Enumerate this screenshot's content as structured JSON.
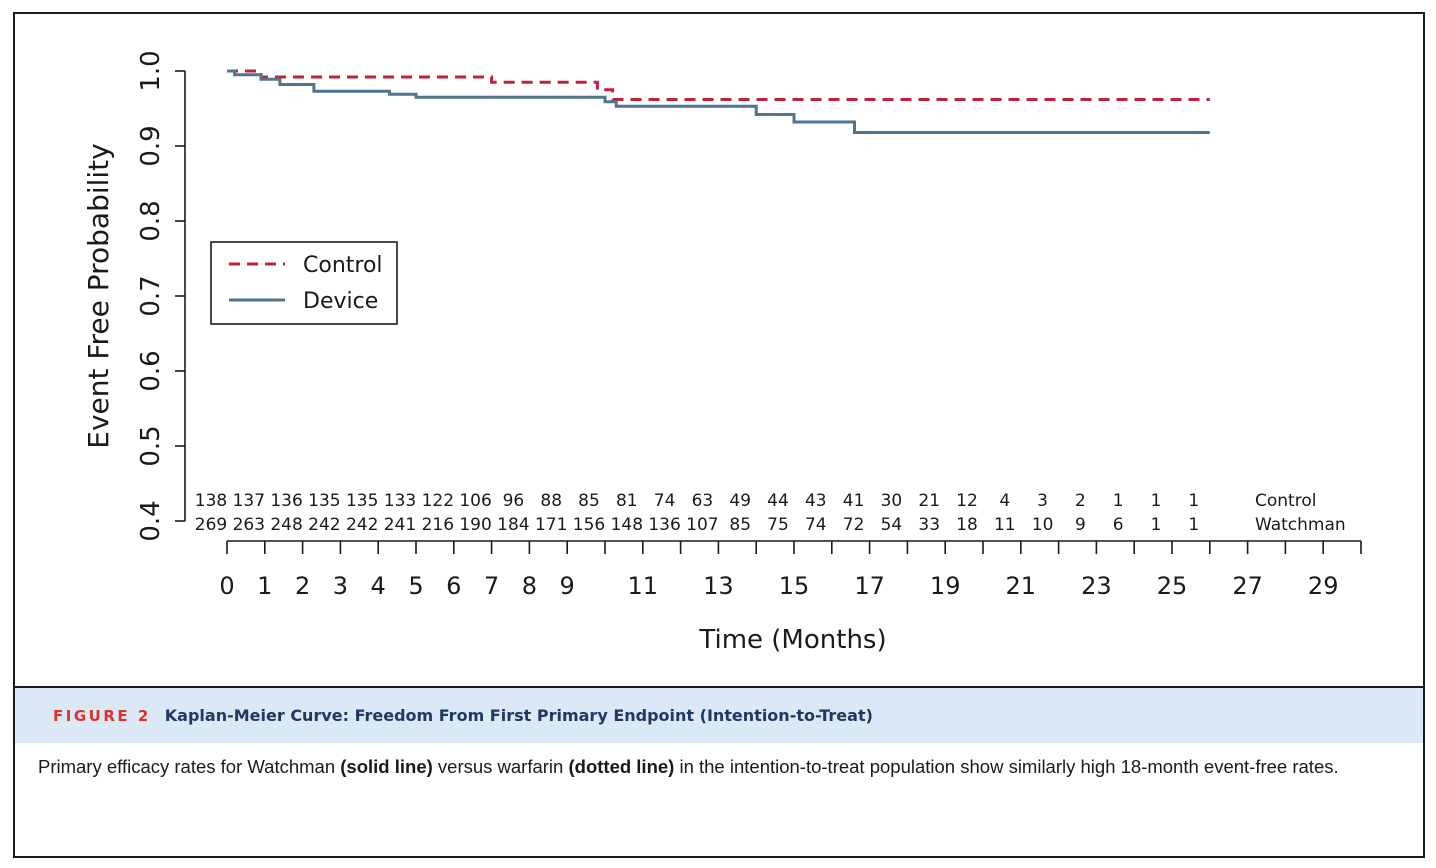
{
  "figure": {
    "number_label": "FIGURE 2",
    "title": "Kaplan-Meier Curve: Freedom From First Primary Endpoint (Intention-to-Treat)",
    "caption_part1": "Primary efficacy rates for Watchman ",
    "caption_bold1": "(solid line)",
    "caption_part2": " versus warfarin ",
    "caption_bold2": "(dotted line)",
    "caption_part3": " in the intention-to-treat population show similarly high 18-month event-free rates."
  },
  "chart_data": {
    "type": "line",
    "xlabel": "Time (Months)",
    "ylabel": "Event Free Probability",
    "xlim": [
      0,
      30
    ],
    "ylim": [
      0.4,
      1.0
    ],
    "x_ticks": [
      0,
      1,
      2,
      3,
      4,
      5,
      6,
      7,
      8,
      9,
      10,
      11,
      12,
      13,
      14,
      15,
      16,
      17,
      18,
      19,
      20,
      21,
      22,
      23,
      24,
      25,
      26,
      27,
      28,
      29,
      30
    ],
    "x_tick_labels": [
      "0",
      "1",
      "2",
      "3",
      "4",
      "5",
      "6",
      "7",
      "8",
      "9",
      "11",
      "13",
      "15",
      "17",
      "19",
      "21",
      "23",
      "25",
      "27",
      "29"
    ],
    "x_tick_label_values": [
      0,
      1,
      2,
      3,
      4,
      5,
      6,
      7,
      8,
      9,
      11,
      13,
      15,
      17,
      19,
      21,
      23,
      25,
      27,
      29
    ],
    "y_ticks": [
      0.4,
      0.5,
      0.6,
      0.7,
      0.8,
      0.9,
      1.0
    ],
    "y_tick_labels": [
      "0.4",
      "0.5",
      "0.6",
      "0.7",
      "0.8",
      "0.9",
      "1.0"
    ],
    "legend_position": "left",
    "grid": false,
    "series": [
      {
        "name": "Control",
        "color": "#c0223b",
        "style": "dashed",
        "x": [
          0,
          0.9,
          0.9,
          7,
          7,
          9.8,
          9.8,
          10.2,
          10.2,
          26
        ],
        "y": [
          1.0,
          1.0,
          0.992,
          0.992,
          0.985,
          0.985,
          0.975,
          0.975,
          0.962,
          0.962
        ]
      },
      {
        "name": "Device",
        "color": "#4f7590",
        "style": "solid",
        "x": [
          0,
          0.2,
          0.2,
          0.9,
          0.9,
          1.4,
          1.4,
          2.3,
          2.3,
          4.3,
          4.3,
          5.0,
          5.0,
          10.0,
          10.0,
          10.3,
          10.3,
          14.0,
          14.0,
          15.0,
          15.0,
          16.6,
          16.6,
          26
        ],
        "y": [
          1.0,
          1.0,
          0.995,
          0.995,
          0.989,
          0.989,
          0.982,
          0.982,
          0.973,
          0.973,
          0.969,
          0.969,
          0.965,
          0.965,
          0.959,
          0.959,
          0.953,
          0.953,
          0.942,
          0.942,
          0.932,
          0.932,
          0.918,
          0.918
        ]
      }
    ],
    "at_risk": {
      "times": [
        0,
        1,
        2,
        3,
        4,
        5,
        6,
        7,
        8,
        9,
        10,
        11,
        12,
        13,
        14,
        15,
        16,
        17,
        18,
        19,
        20,
        21,
        22,
        23,
        24,
        25,
        26
      ],
      "rows": [
        {
          "label": "Control",
          "values": [
            "138",
            "137",
            "136",
            "135",
            "135",
            "133",
            "122",
            "106",
            "96",
            "88",
            "85",
            "81",
            "74",
            "63",
            "49",
            "44",
            "43",
            "41",
            "30",
            "21",
            "12",
            "4",
            "3",
            "2",
            "1",
            "1",
            "1"
          ]
        },
        {
          "label": "Watchman",
          "values": [
            "269",
            "263",
            "248",
            "242",
            "242",
            "241",
            "216",
            "190",
            "184",
            "171",
            "156",
            "148",
            "136",
            "107",
            "85",
            "75",
            "74",
            "72",
            "54",
            "33",
            "18",
            "11",
            "10",
            "9",
            "6",
            "1",
            "1"
          ]
        }
      ]
    }
  }
}
